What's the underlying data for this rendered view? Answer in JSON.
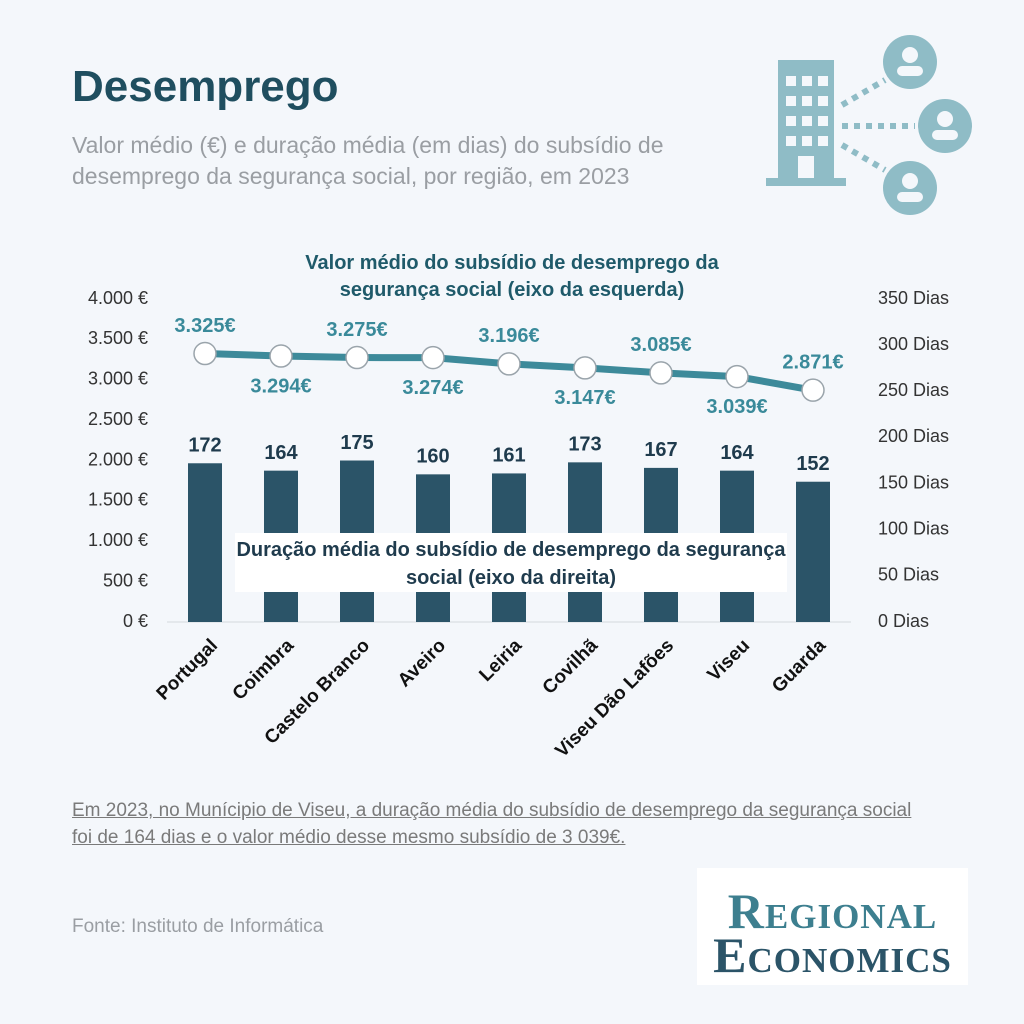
{
  "chart_data": {
    "type": "bar-line",
    "title": "Desemprego",
    "subtitle": "Valor médio (€) e duração média (em dias) do subsídio de desemprego da segurança social, por região, em 2023",
    "categories": [
      "Portugal",
      "Coimbra",
      "Castelo Branco",
      "Aveiro",
      "Leiria",
      "Covilhã",
      "Viseu Dão Lafões",
      "Viseu",
      "Guarda"
    ],
    "series": [
      {
        "name": "Valor médio do subsídio de desemprego da segurança social (eixo da esquerda)",
        "type": "line",
        "axis": "y",
        "color": "#3d8a9a",
        "values": [
          3325,
          3294,
          3275,
          3274,
          3196,
          3147,
          3085,
          3039,
          2871
        ],
        "value_labels": [
          "3.325€",
          "3.294€",
          "3.275€",
          "3.274€",
          "3.196€",
          "3.147€",
          "3.085€",
          "3.039€",
          "2.871€"
        ]
      },
      {
        "name": "Duração média do subsídio de desemprego da segurança social (eixo da direita)",
        "type": "bar",
        "axis": "y2",
        "color": "#2b5468",
        "values": [
          172,
          164,
          175,
          160,
          161,
          173,
          167,
          164,
          152
        ]
      }
    ],
    "ylim": [
      0,
      4000
    ],
    "yticks": [
      {
        "value": 0,
        "label": "0 €"
      },
      {
        "value": 500,
        "label": "500 €"
      },
      {
        "value": 1000,
        "label": "1.000 €"
      },
      {
        "value": 1500,
        "label": "1.500 €"
      },
      {
        "value": 2000,
        "label": "2.000 €"
      },
      {
        "value": 2500,
        "label": "2.500 €"
      },
      {
        "value": 3000,
        "label": "3.000 €"
      },
      {
        "value": 3500,
        "label": "3.500 €"
      },
      {
        "value": 4000,
        "label": "4.000 €"
      }
    ],
    "y2lim": [
      0,
      350
    ],
    "y2ticks": [
      {
        "value": 0,
        "label": "0 Dias"
      },
      {
        "value": 50,
        "label": "50 Dias"
      },
      {
        "value": 100,
        "label": "100 Dias"
      },
      {
        "value": 150,
        "label": "150 Dias"
      },
      {
        "value": 200,
        "label": "200 Dias"
      },
      {
        "value": 250,
        "label": "250 Dias"
      },
      {
        "value": 300,
        "label": "300 Dias"
      },
      {
        "value": 350,
        "label": "350 Dias"
      }
    ],
    "grid": false,
    "annotation": "Em 2023, no Munícipio de Viseu, a duração média do subsídio de desemprego da segurança social foi de 164 dias e o valor médio desse mesmo subsídio de 3 039€.",
    "source": "Fonte: Instituto de Informática",
    "logo": [
      "Regional",
      "Economics"
    ]
  }
}
